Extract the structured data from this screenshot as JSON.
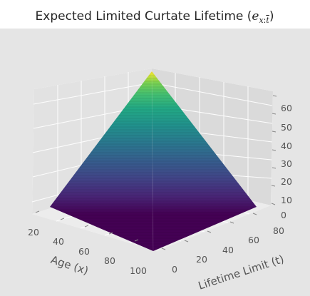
{
  "chart_data": {
    "type": "surface",
    "title": {
      "main": "Expected Limited Curtate Lifetime (",
      "math_e": "e",
      "math_sub_x": "x",
      "math_sub_colon": ":",
      "math_sub_t": "t",
      "math_close": ")"
    },
    "xlabel": "Age (x)",
    "ylabel": "Lifetime Limit (t)",
    "zlabel": "",
    "xlim": [
      20,
      100
    ],
    "ylim": [
      0,
      80
    ],
    "zlim": [
      0,
      65
    ],
    "xticks": [
      20,
      40,
      60,
      80,
      100
    ],
    "yticks": [
      0,
      20,
      40,
      60,
      80
    ],
    "zticks": [
      0,
      10,
      20,
      30,
      40,
      50,
      60
    ],
    "colormap": "viridis",
    "pane_color": "#e5e5e5",
    "grid_color": "#ffffff",
    "surface_formula": "z = min(t, 100 - x) approx",
    "peak": {
      "x": 20,
      "t": 80,
      "z": 62.5
    },
    "surface_samples": [
      {
        "x": 20,
        "t": 0,
        "z": 0
      },
      {
        "x": 20,
        "t": 40,
        "z": 39
      },
      {
        "x": 20,
        "t": 80,
        "z": 62.5
      },
      {
        "x": 60,
        "t": 0,
        "z": 0
      },
      {
        "x": 60,
        "t": 40,
        "z": 30
      },
      {
        "x": 60,
        "t": 80,
        "z": 31
      },
      {
        "x": 100,
        "t": 0,
        "z": 0
      },
      {
        "x": 100,
        "t": 80,
        "z": 0
      }
    ]
  }
}
